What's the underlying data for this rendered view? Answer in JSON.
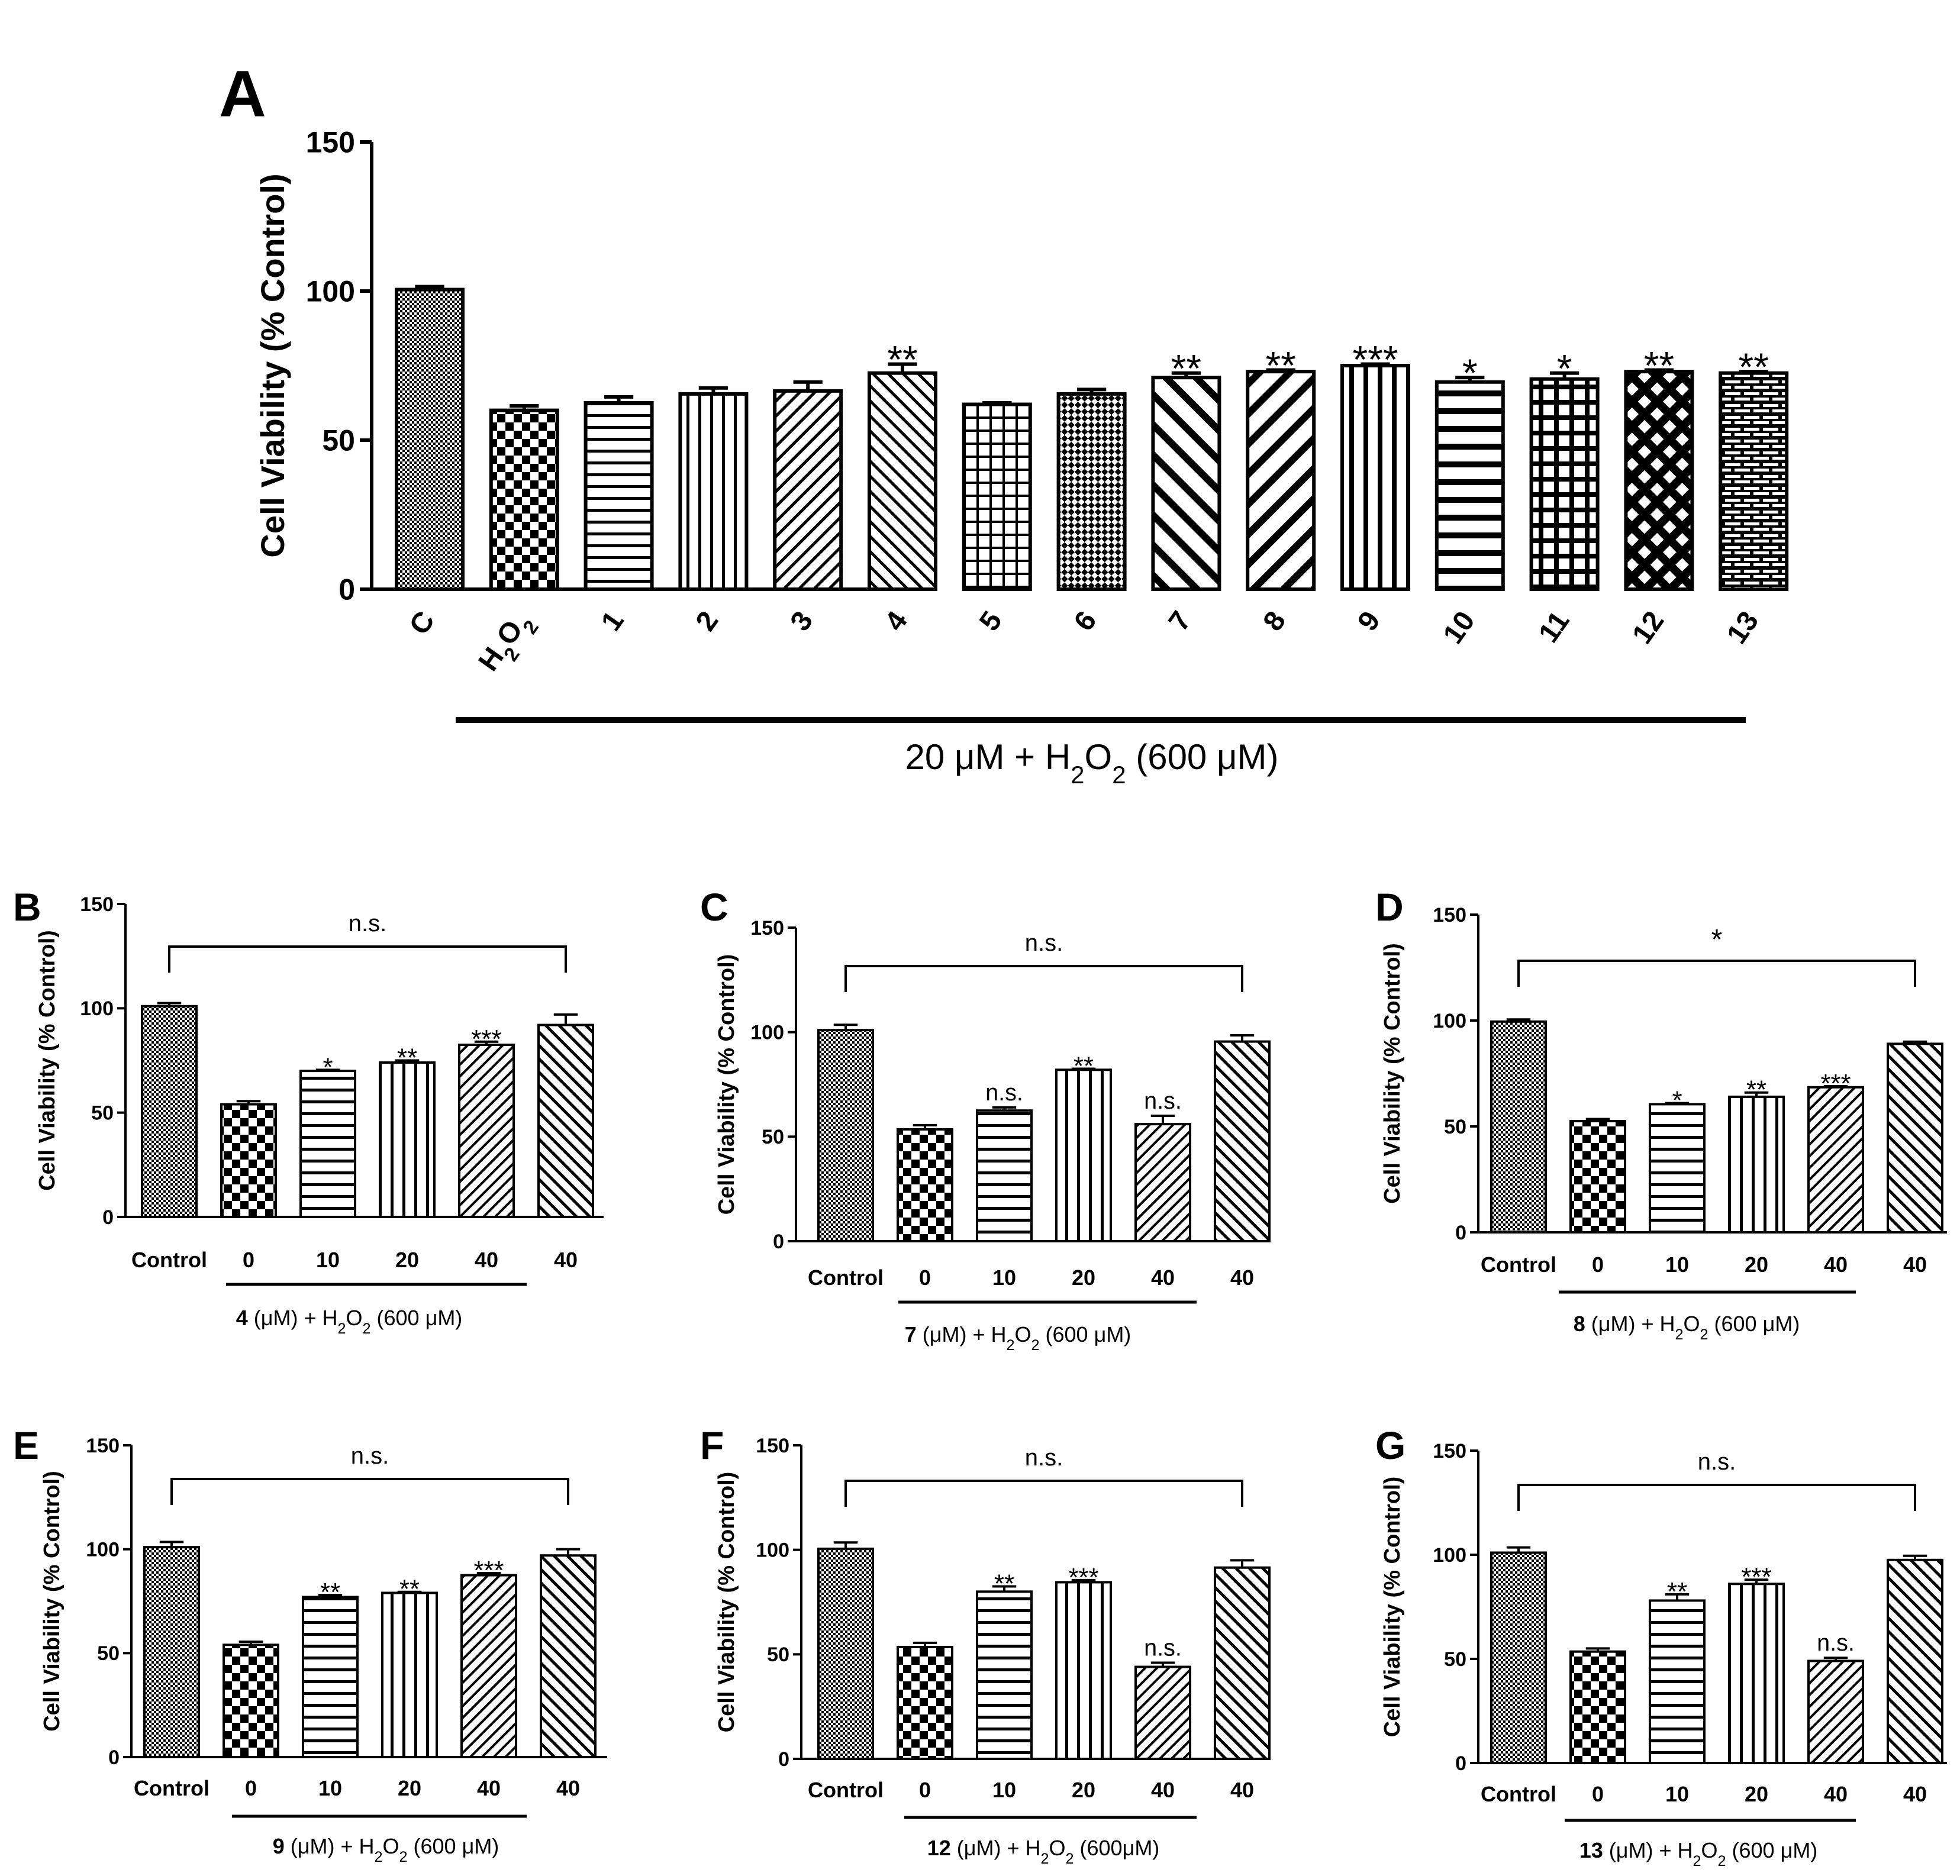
{
  "chart_data": [
    {
      "panel": "A",
      "type": "bar",
      "ylabel": "Cell Viability (% Control)",
      "yticks": [
        "0",
        "50",
        "100",
        "150"
      ],
      "ylim": [
        0,
        150
      ],
      "categories": [
        "C",
        "H2O2",
        "1",
        "2",
        "3",
        "4",
        "5",
        "6",
        "7",
        "8",
        "9",
        "10",
        "11",
        "12",
        "13"
      ],
      "values": [
        100.5,
        60,
        62.5,
        65.5,
        66.5,
        72.5,
        62,
        65.5,
        71,
        73,
        75,
        69.5,
        70.5,
        73,
        72.5
      ],
      "errors": [
        1,
        1.5,
        2,
        2,
        3,
        3,
        0.5,
        1.5,
        1.5,
        0.5,
        0.5,
        1.5,
        2,
        0.5,
        0.5
      ],
      "significance": [
        "",
        "",
        "",
        "",
        "",
        "**",
        "",
        "",
        "**",
        "**",
        "***",
        "*",
        "*",
        "**",
        "**"
      ],
      "h2o2_sub": "2",
      "underline_label": {
        "pre": "20 μM + H",
        "sub": "2",
        "mid": "O",
        "sub2": "2",
        "post": " (600 μM)"
      }
    },
    {
      "panel": "B",
      "type": "bar",
      "ylabel": "Cell Viability (% Control)",
      "yticks": [
        "0",
        "50",
        "100",
        "150"
      ],
      "ylim": [
        0,
        150
      ],
      "categories": [
        "Control",
        "0",
        "10",
        "20",
        "40",
        "40"
      ],
      "values": [
        101,
        54,
        70,
        74,
        82.5,
        92
      ],
      "errors": [
        1.5,
        1.5,
        0.5,
        1,
        1.5,
        5
      ],
      "significance": [
        "",
        "",
        "*",
        "**",
        "***",
        ""
      ],
      "bracket_label": "n.s.",
      "underline_label": {
        "bold": "4",
        "pre": " (μM) + H",
        "sub": "2",
        "mid": "O",
        "sub2": "2",
        "post": " (600 μM)"
      }
    },
    {
      "panel": "C",
      "type": "bar",
      "ylabel": "Cell Viability (% Control)",
      "yticks": [
        "0",
        "50",
        "100",
        "150"
      ],
      "ylim": [
        0,
        150
      ],
      "categories": [
        "Control",
        "0",
        "10",
        "20",
        "40",
        "40"
      ],
      "values": [
        101,
        53.5,
        62.5,
        82,
        56,
        95.5
      ],
      "errors": [
        2.5,
        2,
        1.5,
        0.5,
        4,
        3
      ],
      "significance": [
        "",
        "",
        "n.s.",
        "**",
        "n.s.",
        ""
      ],
      "bracket_label": "n.s.",
      "underline_label": {
        "bold": "7",
        "pre": " (μM) + H",
        "sub": "2",
        "mid": "O",
        "sub2": "2",
        "post": " (600 μM)"
      }
    },
    {
      "panel": "D",
      "type": "bar",
      "ylabel": "Cell Viability (% Control)",
      "yticks": [
        "0",
        "50",
        "100",
        "150"
      ],
      "ylim": [
        0,
        150
      ],
      "categories": [
        "Control",
        "0",
        "10",
        "20",
        "40",
        "40"
      ],
      "values": [
        99.5,
        52.5,
        60.5,
        64,
        68.5,
        89
      ],
      "errors": [
        1,
        1,
        0.5,
        2,
        0.5,
        1
      ],
      "significance": [
        "",
        "",
        "*",
        "**",
        "***",
        ""
      ],
      "bracket_label": "*",
      "underline_label": {
        "bold": "8",
        "pre": " (μM) + H",
        "sub": "2",
        "mid": "O",
        "sub2": "2",
        "post": " (600 μM)"
      }
    },
    {
      "panel": "E",
      "type": "bar",
      "ylabel": "Cell Viability (% Control)",
      "yticks": [
        "0",
        "50",
        "100",
        "150"
      ],
      "ylim": [
        0,
        150
      ],
      "categories": [
        "Control",
        "0",
        "10",
        "20",
        "40",
        "40"
      ],
      "values": [
        101,
        54,
        77,
        79,
        87.5,
        97
      ],
      "errors": [
        2.5,
        1.5,
        1,
        0.5,
        1,
        3
      ],
      "significance": [
        "",
        "",
        "**",
        "**",
        "***",
        ""
      ],
      "bracket_label": "n.s.",
      "underline_label": {
        "bold": "9",
        "pre": " (μM) + H",
        "sub": "2",
        "mid": "O",
        "sub2": "2",
        "post": " (600 μM)"
      }
    },
    {
      "panel": "F",
      "type": "bar",
      "ylabel": "Cell Viability (% Control)",
      "yticks": [
        "0",
        "50",
        "100",
        "150"
      ],
      "ylim": [
        0,
        150
      ],
      "categories": [
        "Control",
        "0",
        "10",
        "20",
        "40",
        "40"
      ],
      "values": [
        100.5,
        53.5,
        80,
        84.5,
        44,
        91.5
      ],
      "errors": [
        3,
        2,
        2.5,
        1,
        2,
        3.5
      ],
      "significance": [
        "",
        "",
        "**",
        "***",
        "n.s.",
        ""
      ],
      "bracket_label": "n.s.",
      "underline_label": {
        "bold": "12",
        "pre": " (μM) + H",
        "sub": "2",
        "mid": "O",
        "sub2": "2",
        "post": " (600μM)"
      }
    },
    {
      "panel": "G",
      "type": "bar",
      "ylabel": "Cell Viability (% Control)",
      "yticks": [
        "0",
        "50",
        "100",
        "150"
      ],
      "ylim": [
        0,
        150
      ],
      "categories": [
        "Control",
        "0",
        "10",
        "20",
        "40",
        "40"
      ],
      "values": [
        101,
        53.5,
        78,
        86,
        49,
        97.5
      ],
      "errors": [
        2.5,
        1.5,
        3,
        2,
        1.5,
        2
      ],
      "significance": [
        "",
        "",
        "**",
        "***",
        "n.s.",
        ""
      ],
      "bracket_label": "n.s.",
      "underline_label": {
        "bold": "13",
        "pre": " (μM) + H",
        "sub": "2",
        "mid": "O",
        "sub2": "2",
        "post": " (600 μM)"
      }
    }
  ]
}
